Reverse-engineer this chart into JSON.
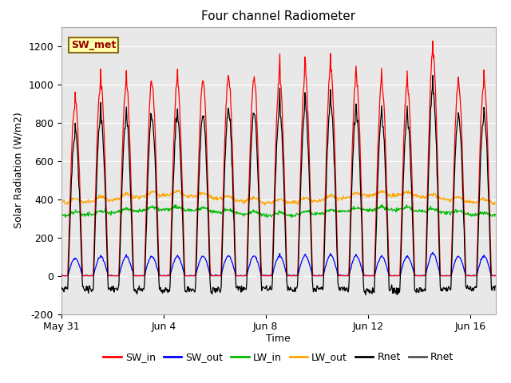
{
  "title": "Four channel Radiometer",
  "ylabel": "Solar Radiation (W/m2)",
  "xlabel": "Time",
  "annotation": "SW_met",
  "ylim": [
    -200,
    1300
  ],
  "yticks": [
    -200,
    0,
    200,
    400,
    600,
    800,
    1000,
    1200
  ],
  "plot_bg_color": "#e8e8e8",
  "num_days": 17,
  "tick_positions": [
    0,
    4,
    8,
    12,
    16
  ],
  "tick_labels": [
    "May 31",
    "Jun 4",
    "Jun 8",
    "Jun 12",
    "Jun 16"
  ],
  "colors": {
    "SW_in": "#ff0000",
    "SW_out": "#0000ff",
    "LW_in": "#00bb00",
    "LW_out": "#ffa500",
    "Rnet": "#000000",
    "Rnet2": "#555555"
  },
  "legend_labels": [
    "SW_in",
    "SW_out",
    "LW_in",
    "LW_out",
    "Rnet",
    "Rnet"
  ],
  "legend_colors": [
    "#ff0000",
    "#0000ff",
    "#00bb00",
    "#ffa500",
    "#000000",
    "#555555"
  ],
  "figsize": [
    6.4,
    4.8
  ],
  "dpi": 100
}
